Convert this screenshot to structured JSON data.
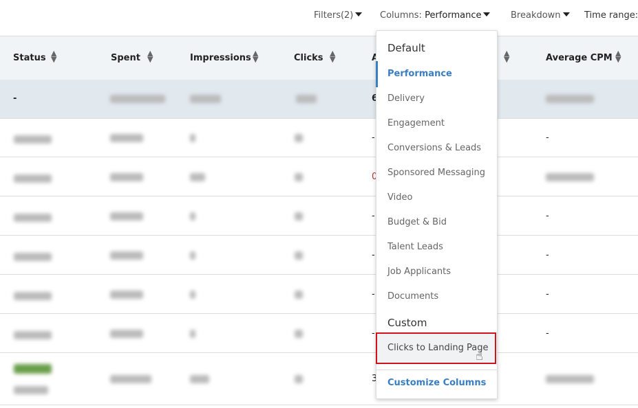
{
  "toolbar": {
    "filters": "Filters(2)",
    "columns_label": "Columns:",
    "columns_value": "Performance",
    "breakdown": "Breakdown",
    "time_range": "Time range: -"
  },
  "table": {
    "headers": [
      "Status",
      "Spent",
      "Impressions",
      "Clicks",
      "A",
      "Average CPM"
    ],
    "total_row": {
      "status": "-",
      "col_a": "6"
    },
    "rows": [
      {
        "col_a": "-",
        "cpm": "-"
      },
      {
        "col_a": "0",
        "cpm": ""
      },
      {
        "col_a": "-",
        "cpm": "-"
      },
      {
        "col_a": "-",
        "cpm": "-"
      },
      {
        "col_a": "-",
        "cpm": "-"
      },
      {
        "col_a": "-",
        "cpm": "-"
      },
      {
        "col_a": "3",
        "cpm": ""
      }
    ]
  },
  "menu": {
    "default_heading": "Default",
    "items": [
      "Performance",
      "Delivery",
      "Engagement",
      "Conversions & Leads",
      "Sponsored Messaging",
      "Video",
      "Budget & Bid",
      "Talent Leads",
      "Job Applicants",
      "Documents"
    ],
    "selected": "Performance",
    "custom_heading": "Custom",
    "custom_items": [
      "Clicks to Landing Page"
    ],
    "customize": "Customize Columns"
  },
  "colors": {
    "accent": "#3a7ec2",
    "highlight_border": "#d0121b",
    "header_bg": "#f1f4f7",
    "total_bg": "#e1e8ee"
  }
}
